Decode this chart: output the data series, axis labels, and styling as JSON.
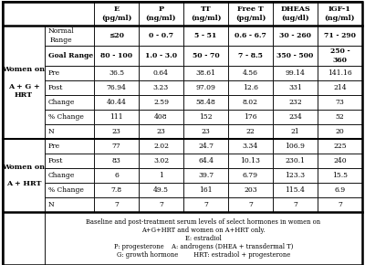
{
  "col_headers": [
    "E\n(pg/ml)",
    "P\n(ng/ml)",
    "TT\n(ng/ml)",
    "Free T\n(pg/ml)",
    "DHEAS\n(ug/dl)",
    "IGF-1\n(ng/ml)"
  ],
  "rows": [
    [
      "Normal\nRange",
      "≤20",
      "0 - 0.7",
      "5 - 51",
      "0.6 - 6.7",
      "30 - 260",
      "71 - 290"
    ],
    [
      "Goal Range",
      "80 - 100",
      "1.0 - 3.0",
      "50 - 70",
      "7 - 8.5",
      "350 - 500",
      "250 -\n360"
    ],
    [
      "Pre",
      "36.5",
      "0.64",
      "38.61",
      "4.56",
      "99.14",
      "141.16"
    ],
    [
      "Post",
      "76.94",
      "3.23",
      "97.09",
      "12.6",
      "331",
      "214"
    ],
    [
      "Change",
      "40.44",
      "2.59",
      "58.48",
      "8.02",
      "232",
      "73"
    ],
    [
      "% Change",
      "111",
      "408",
      "152",
      "176",
      "234",
      "52"
    ],
    [
      "N",
      "23",
      "23",
      "23",
      "22",
      "21",
      "20"
    ],
    [
      "Pre",
      "77",
      "2.02",
      "24.7",
      "3.34",
      "106.9",
      "225"
    ],
    [
      "Post",
      "83",
      "3.02",
      "64.4",
      "10.13",
      "230.1",
      "240"
    ],
    [
      "Change",
      "6",
      "1",
      "39.7",
      "6.79",
      "123.3",
      "15.5"
    ],
    [
      "% Change",
      "7.8",
      "49.5",
      "161",
      "203",
      "115.4",
      "6.9"
    ],
    [
      "N",
      "7",
      "7",
      "7",
      "7",
      "7",
      "7"
    ]
  ],
  "group1_label": "Women on\n\nA + G +\nHRT",
  "group2_label": "Women on\n\nA + HRT",
  "footer_line1": "Baseline and post-treatment serum levels of select hormones in women on",
  "footer_line2": "A+G+HRT and women on A+HRT only.",
  "footer_line3": "E: estradiol",
  "footer_line4": "P: progesterone    A: androgens (DHEA + transdermal T)",
  "footer_line5": "G: growth hormone        HRT: estradiol + progesterone"
}
